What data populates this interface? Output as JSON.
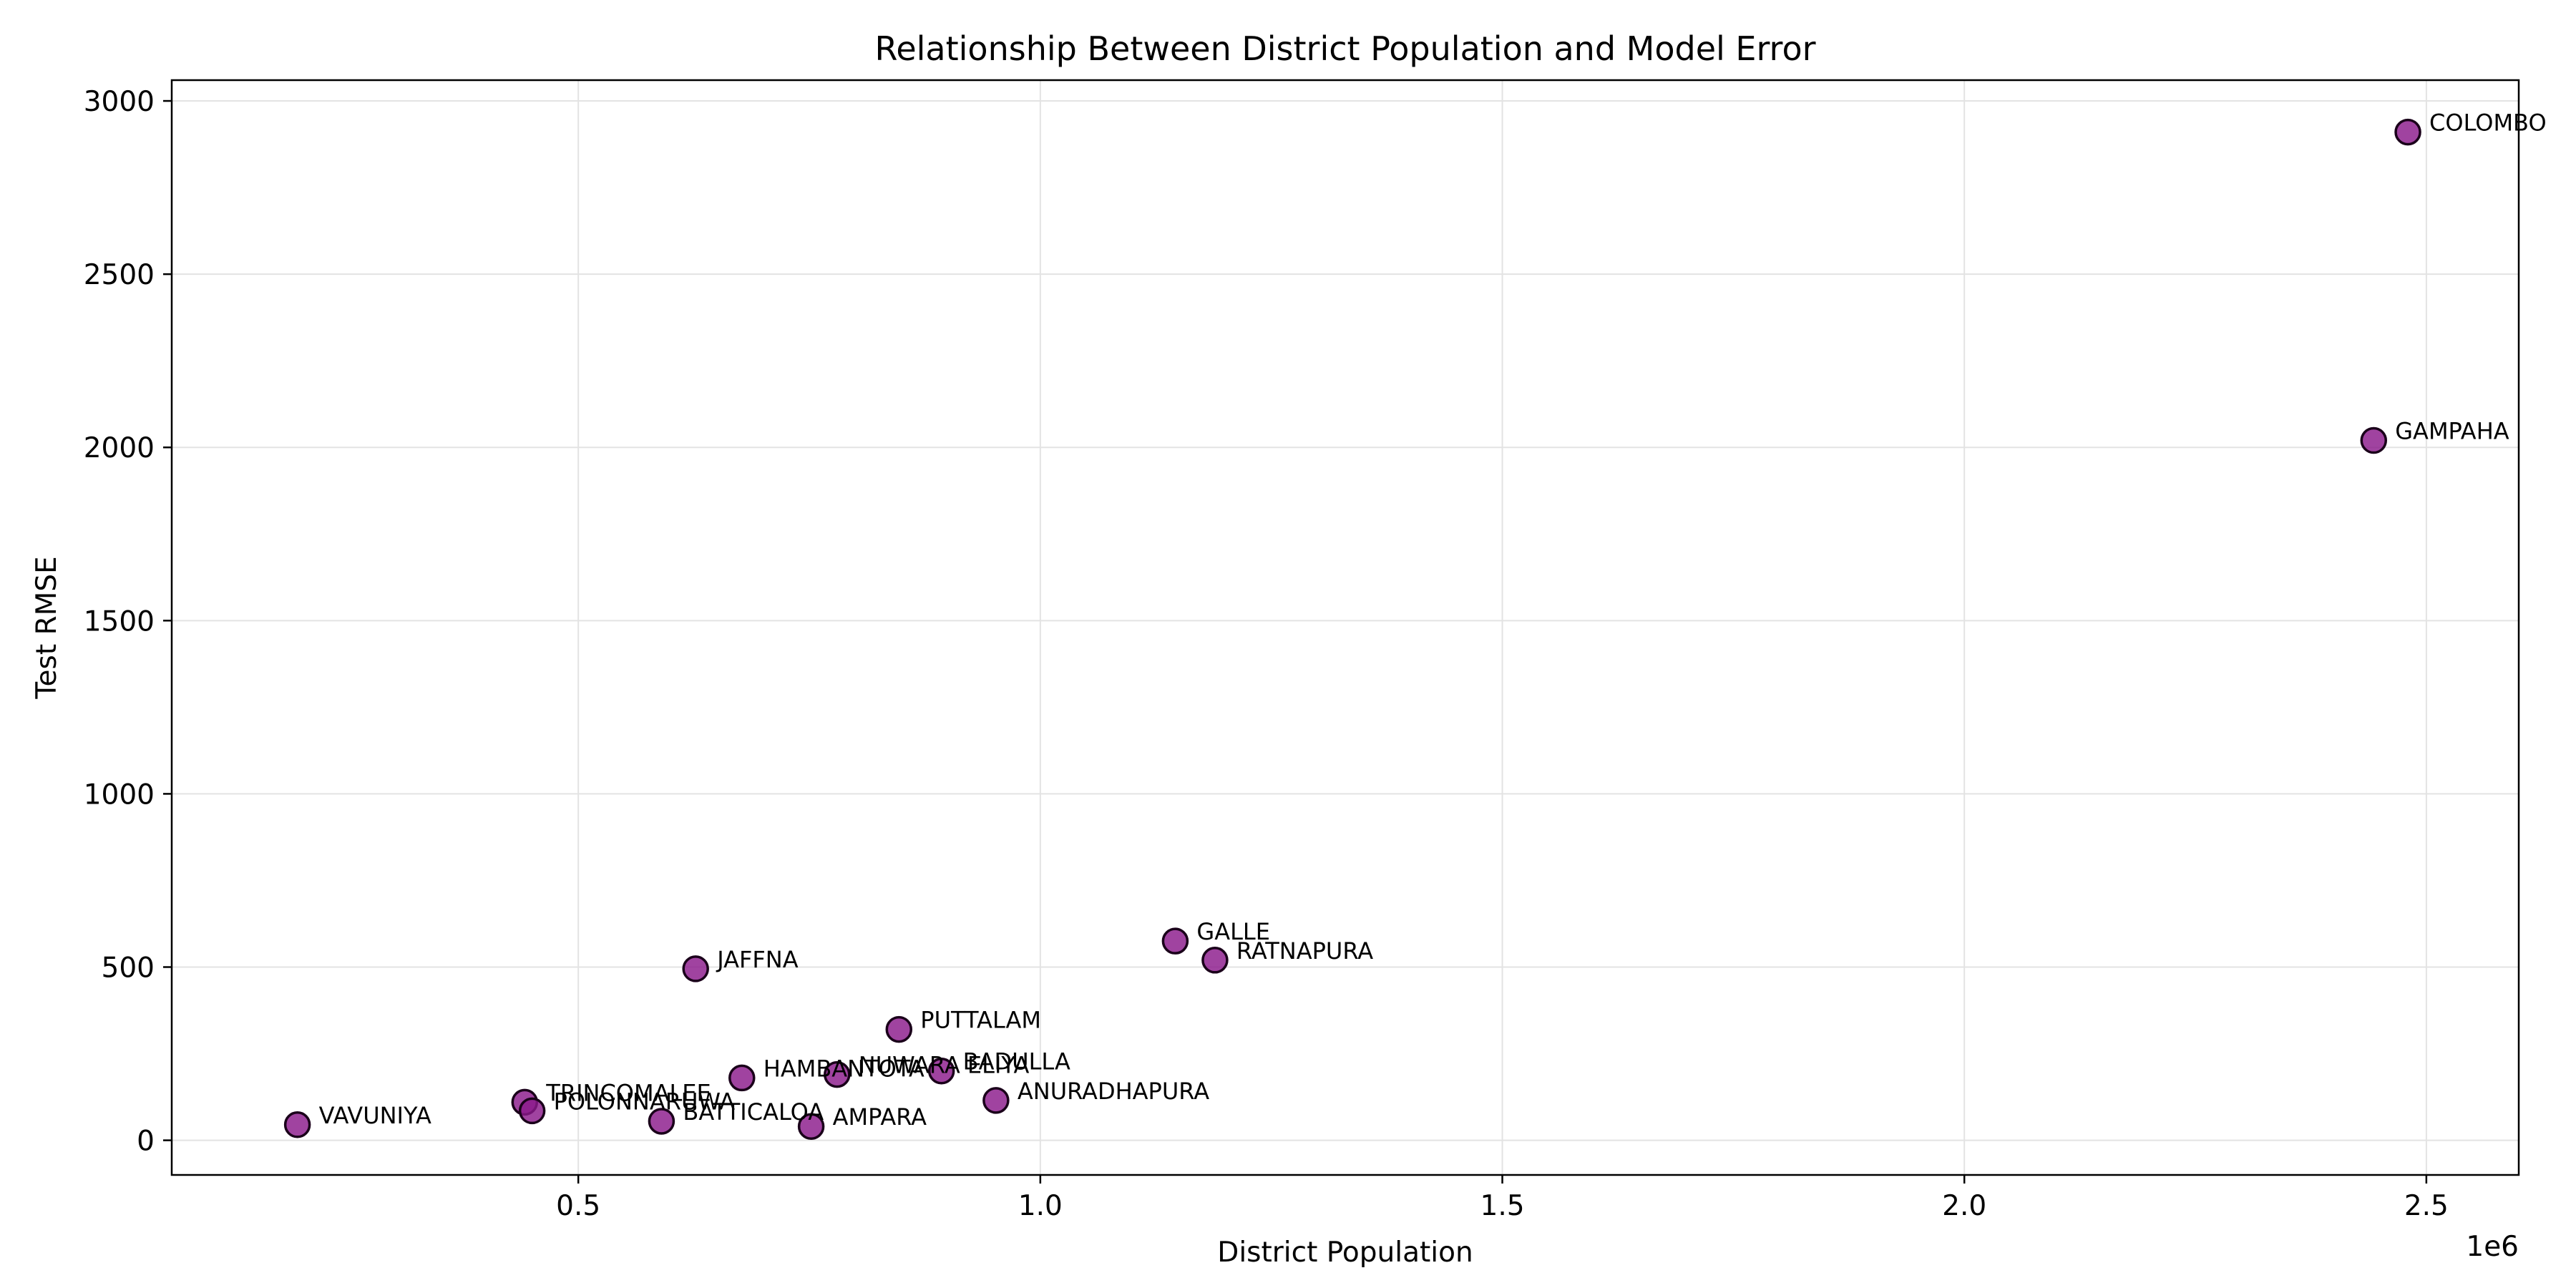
{
  "chart_data": {
    "type": "scatter",
    "title": "Relationship Between District Population and Model Error",
    "xlabel": "District Population",
    "ylabel": "Test RMSE",
    "x_offset_label": "1e6",
    "xlim": [
      0.06,
      2.6
    ],
    "ylim": [
      -100,
      3060
    ],
    "x_scale": 1000000,
    "x_ticks": [
      0.5,
      1.0,
      1.5,
      2.0,
      2.5
    ],
    "x_tick_labels": [
      "0.5",
      "1.0",
      "1.5",
      "2.0",
      "2.5"
    ],
    "y_ticks": [
      0,
      500,
      1000,
      1500,
      2000,
      2500,
      3000
    ],
    "y_tick_labels": [
      "0",
      "500",
      "1000",
      "1500",
      "2000",
      "2500",
      "3000"
    ],
    "grid": true,
    "marker_color": "#8b1a8b",
    "points": [
      {
        "label": "COLOMBO",
        "x": 2480000,
        "y": 2910
      },
      {
        "label": "GAMPAHA",
        "x": 2443000,
        "y": 2020
      },
      {
        "label": "GALLE",
        "x": 1146000,
        "y": 575
      },
      {
        "label": "RATNAPURA",
        "x": 1189000,
        "y": 520
      },
      {
        "label": "JAFFNA",
        "x": 627000,
        "y": 495
      },
      {
        "label": "PUTTALAM",
        "x": 847000,
        "y": 320
      },
      {
        "label": "BADULLA",
        "x": 893000,
        "y": 200
      },
      {
        "label": "NUWARA ELIYA",
        "x": 780000,
        "y": 190
      },
      {
        "label": "HAMBANTOTA",
        "x": 677000,
        "y": 180
      },
      {
        "label": "ANURADHAPURA",
        "x": 952000,
        "y": 115
      },
      {
        "label": "TRINCOMALEE",
        "x": 442000,
        "y": 110
      },
      {
        "label": "POLONNARUWA",
        "x": 450000,
        "y": 85
      },
      {
        "label": "BATTICALOA",
        "x": 590000,
        "y": 55
      },
      {
        "label": "AMPARA",
        "x": 752000,
        "y": 40
      },
      {
        "label": "VAVUNIYA",
        "x": 196000,
        "y": 45
      }
    ]
  }
}
